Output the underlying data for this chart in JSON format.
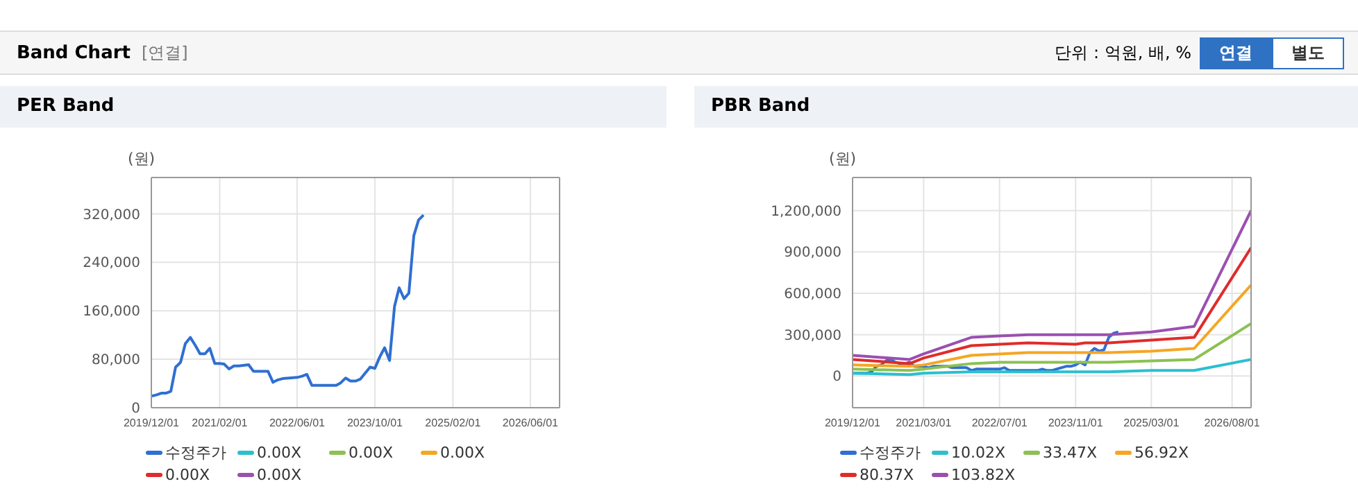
{
  "chart_data": [
    {
      "type": "line",
      "title": "PER Band",
      "ylabel": "(원)",
      "annotations": [
        "Band Chart",
        "[연결]",
        "단위 : 억원, 배, %",
        "연결",
        "별도"
      ],
      "xlim": [
        "2019-12-01",
        "2026-12-01"
      ],
      "xticks": [
        {
          "value": "2019-12-01",
          "label": "2019/12/01"
        },
        {
          "value": "2021-02-01",
          "label": "2021/02/01"
        },
        {
          "value": "2022-06-01",
          "label": "2022/06/01"
        },
        {
          "value": "2023-10-01",
          "label": "2023/10/01"
        },
        {
          "value": "2025-02-01",
          "label": "2025/02/01"
        },
        {
          "value": "2026-06-01",
          "label": "2026/06/01"
        }
      ],
      "ylim": [
        0,
        380000
      ],
      "yticks": [
        0,
        {
          "value": 80000,
          "label": "80,000"
        },
        {
          "value": 160000,
          "label": "160,000"
        },
        {
          "value": 240000,
          "label": "240,000"
        },
        {
          "value": 320000,
          "label": "320,000"
        }
      ],
      "grid": true,
      "legend": "bottom",
      "marker": "none",
      "line_style": "solid",
      "series": [
        {
          "name": "수정주가",
          "color": "#2f6fd1",
          "x": [
            "2019-12",
            "2020-01",
            "2020-02",
            "2020-03",
            "2020-04",
            "2020-05",
            "2020-06",
            "2020-07",
            "2020-08",
            "2020-09",
            "2020-10",
            "2020-11",
            "2020-12",
            "2021-01",
            "2021-02",
            "2021-03",
            "2021-04",
            "2021-05",
            "2021-06",
            "2021-08",
            "2021-09",
            "2021-12",
            "2022-01",
            "2022-02",
            "2022-03",
            "2022-06",
            "2022-07",
            "2022-08",
            "2022-09",
            "2022-12",
            "2023-02",
            "2023-03",
            "2023-04",
            "2023-05",
            "2023-06",
            "2023-07",
            "2023-08",
            "2023-09",
            "2023-10",
            "2023-11",
            "2023-12",
            "2024-01",
            "2024-02",
            "2024-03",
            "2024-04",
            "2024-05",
            "2024-06",
            "2024-07",
            "2024-08"
          ],
          "values": [
            19000,
            21000,
            24000,
            24000,
            27000,
            67000,
            75000,
            106000,
            116000,
            103000,
            89000,
            89000,
            98000,
            73000,
            73000,
            72000,
            64000,
            69000,
            69000,
            71000,
            60000,
            60000,
            42000,
            46000,
            48000,
            50000,
            52000,
            55000,
            37000,
            37000,
            37000,
            41000,
            49000,
            44000,
            44000,
            47000,
            57000,
            67000,
            65000,
            84000,
            99000,
            78000,
            167000,
            198000,
            180000,
            189000,
            284000,
            310000,
            318000
          ]
        },
        {
          "name": "0.00X",
          "color": "#2bbfcf"
        },
        {
          "name": "0.00X",
          "color": "#8cc152"
        },
        {
          "name": "0.00X",
          "color": "#f5a623"
        },
        {
          "name": "0.00X",
          "color": "#e02b2b"
        },
        {
          "name": "0.00X",
          "color": "#9b4fb0"
        }
      ]
    },
    {
      "type": "line",
      "title": "PBR Band",
      "ylabel": "(원)",
      "xlim": [
        "2019-12-01",
        "2026-12-01"
      ],
      "xticks": [
        {
          "value": "2019-12-01",
          "label": "2019/12/01"
        },
        {
          "value": "2021-03-01",
          "label": "2021/03/01"
        },
        {
          "value": "2022-07-01",
          "label": "2022/07/01"
        },
        {
          "value": "2023-11-01",
          "label": "2023/11/01"
        },
        {
          "value": "2025-03-01",
          "label": "2025/03/01"
        },
        {
          "value": "2026-08-01",
          "label": "2026/08/01"
        }
      ],
      "ylim": [
        -230000,
        1440000
      ],
      "yticks": [
        0,
        {
          "value": 300000,
          "label": "300,000"
        },
        {
          "value": 600000,
          "label": "600,000"
        },
        {
          "value": 900000,
          "label": "900,000"
        },
        {
          "value": 1200000,
          "label": "1,200,000"
        }
      ],
      "grid": true,
      "legend": "bottom",
      "marker": "none",
      "line_style": "solid",
      "series": [
        {
          "name": "수정주가",
          "color": "#2f6fd1",
          "x": [
            "2019-12",
            "2020-01",
            "2020-02",
            "2020-03",
            "2020-04",
            "2020-05",
            "2020-06",
            "2020-07",
            "2020-08",
            "2020-09",
            "2020-10",
            "2020-11",
            "2020-12",
            "2021-01",
            "2021-02",
            "2021-03",
            "2021-04",
            "2021-05",
            "2021-06",
            "2021-08",
            "2021-09",
            "2021-12",
            "2022-01",
            "2022-02",
            "2022-03",
            "2022-06",
            "2022-07",
            "2022-08",
            "2022-09",
            "2022-12",
            "2023-02",
            "2023-03",
            "2023-04",
            "2023-05",
            "2023-06",
            "2023-07",
            "2023-08",
            "2023-09",
            "2023-10",
            "2023-11",
            "2023-12",
            "2024-01",
            "2024-02",
            "2024-03",
            "2024-04",
            "2024-05",
            "2024-06",
            "2024-07",
            "2024-08"
          ],
          "values": [
            20000,
            20000,
            20000,
            20000,
            30000,
            70000,
            80000,
            110000,
            120000,
            100000,
            90000,
            90000,
            100000,
            70000,
            70000,
            70000,
            60000,
            70000,
            70000,
            70000,
            60000,
            60000,
            40000,
            50000,
            50000,
            50000,
            50000,
            60000,
            40000,
            40000,
            40000,
            40000,
            50000,
            40000,
            40000,
            50000,
            60000,
            70000,
            70000,
            80000,
            100000,
            80000,
            170000,
            200000,
            180000,
            190000,
            280000,
            310000,
            320000
          ]
        },
        {
          "name": "10.02X",
          "color": "#2bbfcf",
          "x": [
            "2019-12",
            "2020-12",
            "2021-03",
            "2022-01",
            "2022-07",
            "2023-01",
            "2023-11",
            "2024-01",
            "2024-06",
            "2025-03",
            "2025-12",
            "2026-12"
          ],
          "values": [
            20000,
            10000,
            20000,
            30000,
            30000,
            30000,
            30000,
            30000,
            30000,
            40000,
            40000,
            120000
          ]
        },
        {
          "name": "33.47X",
          "color": "#8cc152",
          "x": [
            "2019-12",
            "2020-12",
            "2021-03",
            "2022-01",
            "2022-07",
            "2023-01",
            "2023-11",
            "2024-01",
            "2024-06",
            "2025-03",
            "2025-12",
            "2026-12"
          ],
          "values": [
            50000,
            40000,
            50000,
            90000,
            100000,
            100000,
            100000,
            100000,
            100000,
            110000,
            120000,
            380000
          ]
        },
        {
          "name": "56.92X",
          "color": "#f5a623",
          "x": [
            "2019-12",
            "2020-12",
            "2021-03",
            "2022-01",
            "2022-07",
            "2023-01",
            "2023-11",
            "2024-01",
            "2024-06",
            "2025-03",
            "2025-12",
            "2026-12"
          ],
          "values": [
            80000,
            70000,
            80000,
            150000,
            160000,
            170000,
            170000,
            170000,
            170000,
            180000,
            200000,
            660000
          ]
        },
        {
          "name": "80.37X",
          "color": "#e02b2b",
          "x": [
            "2019-12",
            "2020-12",
            "2021-03",
            "2022-01",
            "2022-07",
            "2023-01",
            "2023-11",
            "2024-01",
            "2024-06",
            "2025-03",
            "2025-12",
            "2026-12"
          ],
          "values": [
            120000,
            90000,
            130000,
            220000,
            230000,
            240000,
            230000,
            240000,
            240000,
            260000,
            280000,
            930000
          ]
        },
        {
          "name": "103.82X",
          "color": "#9b4fb0",
          "x": [
            "2019-12",
            "2020-12",
            "2021-03",
            "2022-01",
            "2022-07",
            "2023-01",
            "2023-11",
            "2024-01",
            "2024-06",
            "2025-03",
            "2025-12",
            "2026-12"
          ],
          "values": [
            150000,
            120000,
            160000,
            280000,
            290000,
            300000,
            300000,
            300000,
            300000,
            320000,
            360000,
            1200000
          ]
        }
      ]
    }
  ]
}
